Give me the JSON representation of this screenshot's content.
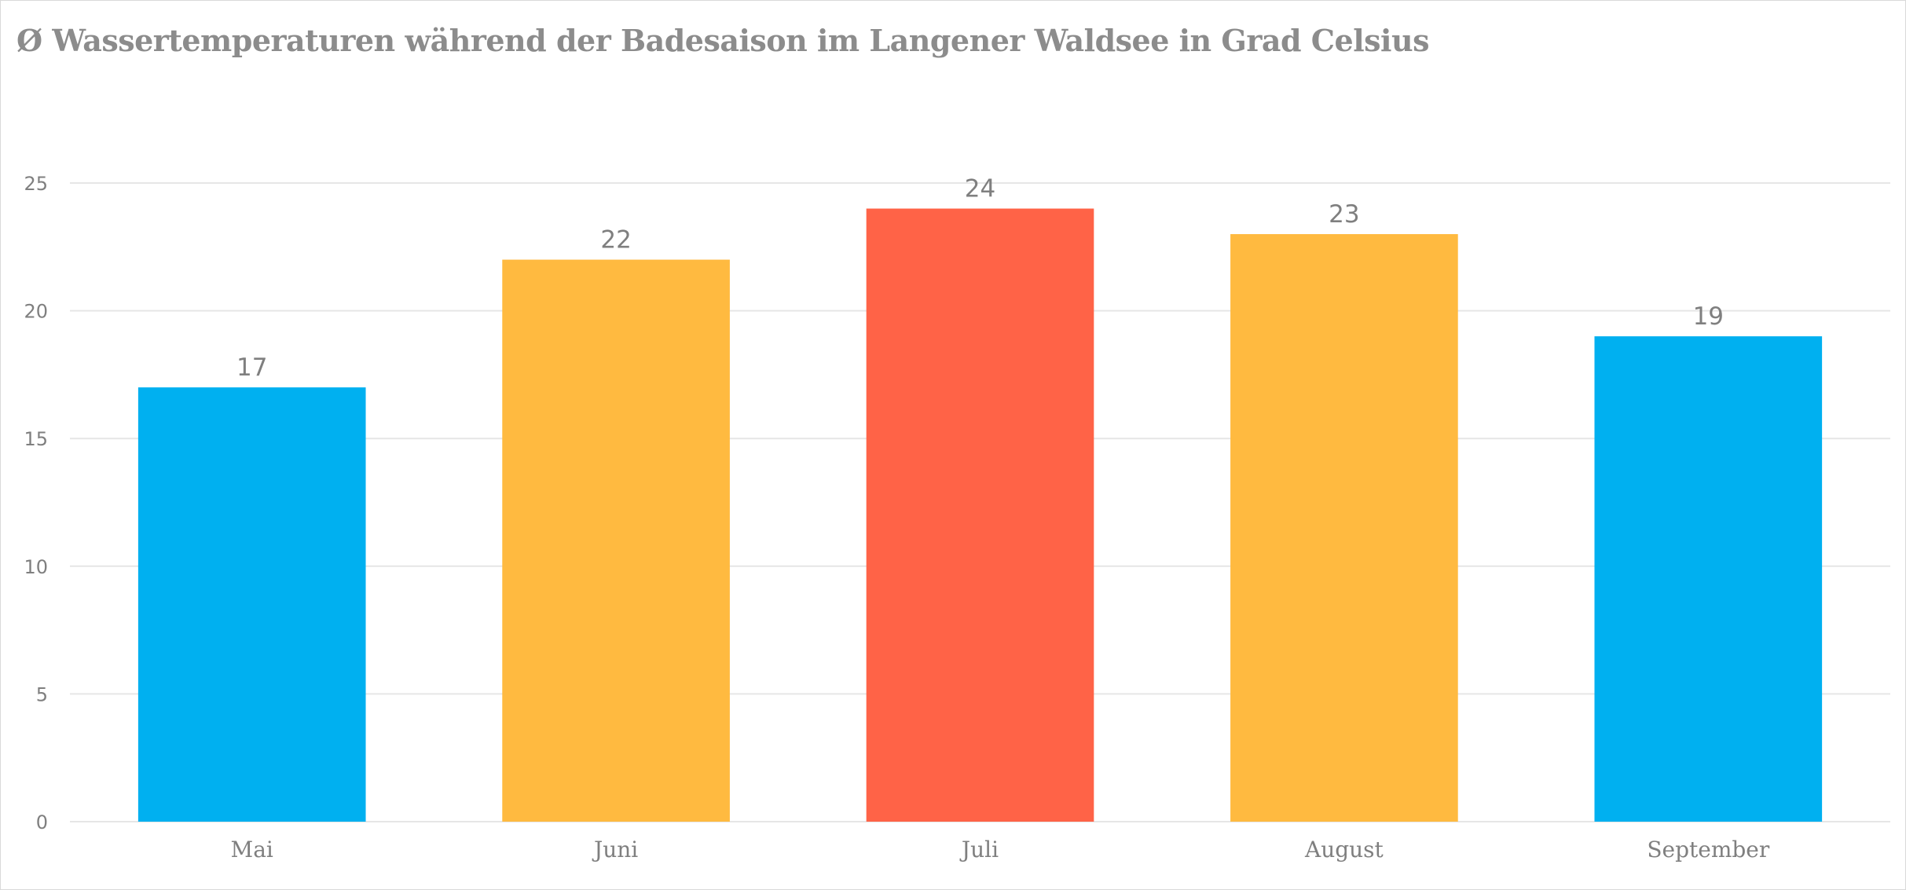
{
  "chart_data": {
    "type": "bar",
    "title": "Ø Wassertemperaturen während der Badesaison im Langener Waldsee in Grad Celsius",
    "categories": [
      "Mai",
      "Juni",
      "Juli",
      "August",
      "September"
    ],
    "values": [
      17,
      22,
      24,
      23,
      19
    ],
    "bar_colors": [
      "#00B0F0",
      "#FFBA40",
      "#FF6347",
      "#FFBA40",
      "#00B0F0"
    ],
    "ylim": [
      0,
      25
    ],
    "yticks": [
      0,
      5,
      10,
      15,
      20,
      25
    ],
    "grid": true,
    "legend": "none",
    "data_labels": true,
    "gridline_color": "#e6e6e6",
    "text_color": "#7f7f7f"
  }
}
